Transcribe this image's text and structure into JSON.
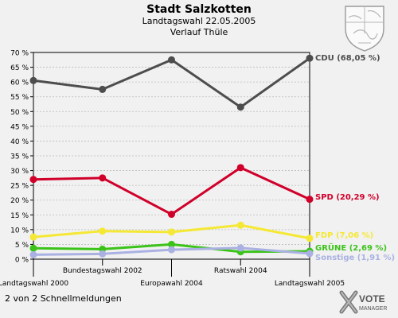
{
  "header": {
    "title": "Stadt Salzkotten",
    "subtitle": "Landtagswahl 22.05.2005",
    "subtitle2": "Verlauf Thüle"
  },
  "footer": {
    "note": "2 von 2 Schnellmeldungen",
    "logo_line1": "VOTE",
    "logo_line2": "MANAGER"
  },
  "colors": {
    "background": "#f1f1f1",
    "grid": "#bbbbbb",
    "CDU": "#4d4d4d",
    "SPD": "#d0002a",
    "FDP": "#f5e834",
    "GRUENE": "#3cc31a",
    "Sonstige": "#aab1e2"
  },
  "icons": {
    "crest": "state-coat-of-arms-icon",
    "logo": "votemanager-logo"
  },
  "chart_data": {
    "type": "line",
    "title": "Stadt Salzkotten",
    "subtitle": "Landtagswahl 22.05.2005",
    "x": [
      "Landtagswahl 2000",
      "Bundestagswahl 2002",
      "Europawahl 2004",
      "Ratswahl 2004",
      "Landtagswahl 2005"
    ],
    "ylim": [
      0,
      70
    ],
    "yticks": [
      "0 %",
      "5 %",
      "10 %",
      "15 %",
      "20 %",
      "25 %",
      "30 %",
      "35 %",
      "40 %",
      "45 %",
      "50 %",
      "55 %",
      "60 %",
      "65 %",
      "70 %"
    ],
    "grid": true,
    "series": [
      {
        "name": "CDU",
        "values": [
          60.5,
          57.5,
          67.5,
          51.5,
          68.05
        ],
        "label": "CDU (68,05 %)"
      },
      {
        "name": "SPD",
        "values": [
          27.0,
          27.5,
          15.2,
          31.0,
          20.29
        ],
        "label": "SPD (20,29 %)"
      },
      {
        "name": "FDP",
        "values": [
          7.5,
          9.5,
          9.2,
          11.5,
          7.06
        ],
        "label": "FDP (7,06 %)"
      },
      {
        "name": "GRÜNE",
        "values": [
          3.7,
          3.4,
          5.0,
          2.5,
          2.69
        ],
        "label": "GRÜNE (2,69 %)"
      },
      {
        "name": "Sonstige",
        "values": [
          1.5,
          1.8,
          3.2,
          3.8,
          1.91
        ],
        "label": "Sonstige (1,91 %)"
      }
    ]
  }
}
